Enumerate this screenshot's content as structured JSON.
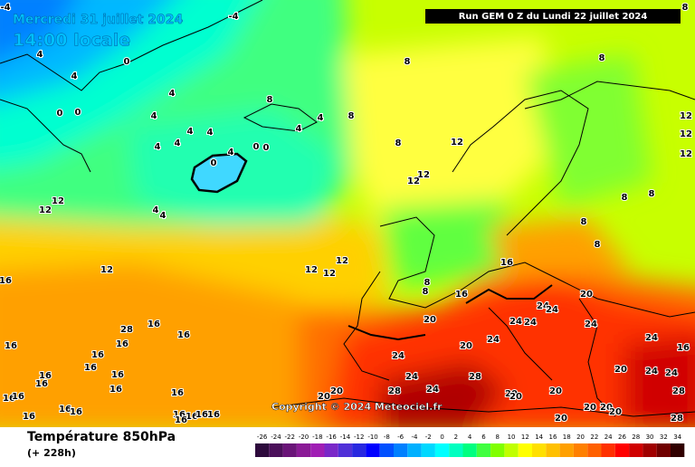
{
  "header": {
    "date": "Mercredi 31 juillet 2024",
    "time": "14:00 locale",
    "run": "Run GEM 0 Z du Lundi 22 juillet 2024"
  },
  "copyright": "Copyright © 2024 Meteociel.fr",
  "footer": {
    "title": "Température 850hPa",
    "lead": "(+ 228h)"
  },
  "colorbar": {
    "ticks": [
      -26,
      -24,
      -22,
      -20,
      -18,
      -16,
      -14,
      -12,
      -10,
      -8,
      -6,
      -4,
      -2,
      0,
      2,
      4,
      6,
      8,
      10,
      12,
      14,
      16,
      18,
      20,
      22,
      24,
      26,
      28,
      30,
      32,
      34
    ],
    "colors": [
      "#2d0a3c",
      "#4b0f5a",
      "#6a1478",
      "#8a1a96",
      "#a01eb4",
      "#7a28c8",
      "#5030d8",
      "#2828e0",
      "#0000ff",
      "#0050ff",
      "#0080ff",
      "#00b0ff",
      "#00d8ff",
      "#00ffff",
      "#00ffc0",
      "#00ff80",
      "#40ff40",
      "#80ff00",
      "#c0ff00",
      "#ffff00",
      "#ffe000",
      "#ffc000",
      "#ffa000",
      "#ff8000",
      "#ff6000",
      "#ff3000",
      "#ff0000",
      "#d00000",
      "#a00000",
      "#700000",
      "#300000"
    ]
  },
  "contour_labels": [
    -4,
    -4,
    0,
    4,
    4,
    0,
    0,
    4,
    8,
    4,
    4,
    4,
    4,
    4,
    4,
    0,
    0,
    0,
    4,
    4,
    8,
    8,
    8,
    12,
    12,
    12,
    8,
    8,
    12,
    12,
    12,
    8,
    8,
    8,
    8,
    12,
    12,
    4,
    4,
    12,
    12,
    12,
    12,
    8,
    8,
    16,
    16,
    20,
    24,
    24,
    24,
    24,
    24,
    24,
    20,
    20,
    24,
    16,
    24,
    24,
    28,
    28,
    24,
    20,
    20,
    20,
    20,
    20,
    20,
    20,
    20,
    20,
    20,
    24,
    24,
    28,
    28,
    28,
    16,
    16,
    16,
    16,
    16,
    16,
    16,
    16,
    16,
    16,
    16,
    16,
    16,
    16,
    16,
    16,
    16,
    16,
    16,
    16,
    16,
    16
  ]
}
